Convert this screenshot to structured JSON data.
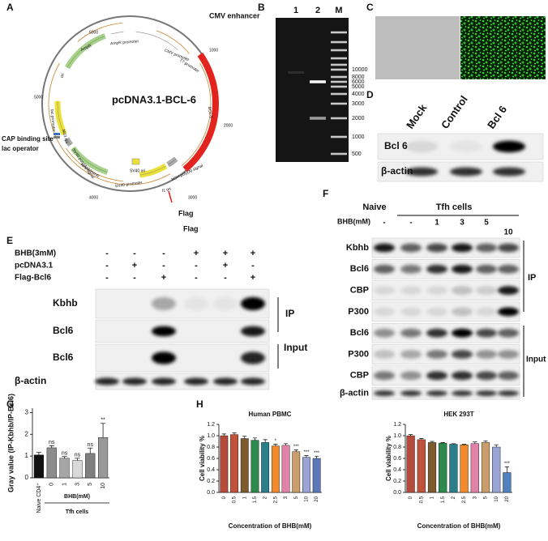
{
  "panel_labels": [
    "A",
    "B",
    "C",
    "D",
    "E",
    "F",
    "G",
    "H"
  ],
  "plasmid": {
    "name": "pcDNA3.1-BCL-6",
    "callouts": [
      "CMV enhancer",
      "CAP binding site",
      "lac operator",
      "Flag",
      "Flag"
    ],
    "features": [
      "AmpR",
      "AmpR promoter",
      "CMV promoter",
      "T7 promoter",
      "BCL-6",
      "bGH poly(A) signal",
      "f1 ori",
      "SV40 promoter",
      "SV40 ori",
      "NeoR/KanR",
      "SV40 poly(A) signal",
      "M13 rev",
      "lac promoter",
      "ori"
    ],
    "scale": [
      "1000",
      "2000",
      "3000",
      "4000",
      "5000",
      "6000"
    ]
  },
  "gel": {
    "lanes": [
      "1",
      "2",
      "M"
    ],
    "ladder": [
      "10000",
      "8000",
      "6000",
      "5000",
      "4000",
      "3000",
      "2000",
      "1000",
      "500"
    ]
  },
  "blot_d": {
    "lanes": [
      "Mock",
      "Control",
      "Bcl 6"
    ],
    "rows": [
      "Bcl 6",
      "β-actin"
    ]
  },
  "blot_e": {
    "conditions": [
      {
        "name": "BHB(3mM)",
        "signs": [
          "-",
          "-",
          "-",
          "+",
          "+",
          "+"
        ]
      },
      {
        "name": "pcDNA3.1",
        "signs": [
          "-",
          "+",
          "-",
          "-",
          "+",
          "-"
        ]
      },
      {
        "name": "Flag-Bcl6",
        "signs": [
          "-",
          "-",
          "+",
          "-",
          "-",
          "+"
        ]
      }
    ],
    "rows": [
      "Kbhb",
      "Bcl6",
      "Bcl6",
      "β-actin"
    ],
    "groups": [
      "IP",
      "Input"
    ]
  },
  "blot_f": {
    "groups_top": [
      "Naive",
      "Tfh cells"
    ],
    "treatment": "BHB(mM)",
    "doses": [
      "-",
      "-",
      "1",
      "3",
      "5",
      "10"
    ],
    "rows": [
      "Kbhb",
      "Bcl6",
      "CBP",
      "P300",
      "Bcl6",
      "P300",
      "CBP",
      "β-actin"
    ],
    "groups": [
      "IP",
      "Input"
    ]
  },
  "chart_data": [
    {
      "type": "bar",
      "ylabel": "Gray value (IP-Kbhb/IP-Bcl6)",
      "categories": [
        "Naive CD4⁺",
        "0",
        "1",
        "3",
        "5",
        "10"
      ],
      "values": [
        1.05,
        1.38,
        0.9,
        0.8,
        1.12,
        1.85
      ],
      "errors": [
        0.12,
        0.1,
        0.08,
        0.1,
        0.25,
        0.65
      ],
      "annotations": [
        null,
        "ns",
        "ns",
        "ns",
        "ns",
        "**"
      ],
      "colors": [
        "#111111",
        "#8c8c8c",
        "#a6a6a6",
        "#d9d9d9",
        "#7f7f7f",
        "#999999"
      ],
      "group_labels": [
        "BHB(mM)",
        "Tfh cells"
      ],
      "ylim": [
        0,
        3.2
      ],
      "yticks": [
        0,
        1,
        2,
        3
      ]
    },
    {
      "type": "bar",
      "title": "Human PBMC",
      "ylabel": "Cell viability %",
      "xlabel": "Concentration of BHB(mM)",
      "categories": [
        "0",
        "0.5",
        "1",
        "1.5",
        "2",
        "2.5",
        "3",
        "5",
        "10",
        "20"
      ],
      "values": [
        1.0,
        1.02,
        0.95,
        0.92,
        0.88,
        0.82,
        0.83,
        0.72,
        0.62,
        0.6
      ],
      "errors": [
        0.03,
        0.03,
        0.04,
        0.04,
        0.05,
        0.03,
        0.03,
        0.03,
        0.03,
        0.04
      ],
      "annotations": [
        null,
        null,
        null,
        null,
        null,
        "*",
        null,
        "***",
        "***",
        "***"
      ],
      "colors": [
        "#b54a3a",
        "#c2533a",
        "#7d5b2e",
        "#2c8a4f",
        "#2a7f8a",
        "#f08a2c",
        "#e083a6",
        "#c99e6a",
        "#9aa5d6",
        "#5b79b8"
      ],
      "ylim": [
        0,
        1.2
      ],
      "yticks": [
        {
          "value": 0,
          "label": "0.0"
        },
        {
          "value": 0.2,
          "label": "0.2"
        },
        {
          "value": 0.4,
          "label": "0.4"
        },
        {
          "value": 0.6,
          "label": "0.6"
        },
        {
          "value": 0.8,
          "label": "0.8"
        },
        {
          "value": 1.0,
          "label": "1.0"
        },
        {
          "value": 1.2,
          "label": "1.2"
        }
      ]
    },
    {
      "type": "bar",
      "title": "HEK 293T",
      "ylabel": "Cell viability %",
      "xlabel": "Concentration of BHB(mM)",
      "categories": [
        "0",
        "0.5",
        "1",
        "1.5",
        "2",
        "2.5",
        "3",
        "5",
        "10",
        "20"
      ],
      "values": [
        1.0,
        0.93,
        0.88,
        0.87,
        0.85,
        0.84,
        0.86,
        0.88,
        0.8,
        0.35
      ],
      "errors": [
        0.02,
        0.02,
        0.02,
        0.01,
        0.01,
        0.01,
        0.03,
        0.03,
        0.04,
        0.1
      ],
      "annotations": [
        null,
        null,
        null,
        null,
        null,
        null,
        null,
        null,
        null,
        "***"
      ],
      "colors": [
        "#b54a3a",
        "#c2533a",
        "#7d5b2e",
        "#2c8a4f",
        "#2a7f8a",
        "#f08a2c",
        "#e083a6",
        "#c99e6a",
        "#9aa5d6",
        "#4f81bd"
      ],
      "ylim": [
        0,
        1.2
      ],
      "yticks": [
        {
          "value": 0,
          "label": "0.0"
        },
        {
          "value": 0.2,
          "label": "0.2"
        },
        {
          "value": 0.4,
          "label": "0.4"
        },
        {
          "value": 0.6,
          "label": "0.6"
        },
        {
          "value": 0.8,
          "label": "0.8"
        },
        {
          "value": 1.0,
          "label": "1.0"
        },
        {
          "value": 1.2,
          "label": "1.2"
        }
      ]
    }
  ]
}
